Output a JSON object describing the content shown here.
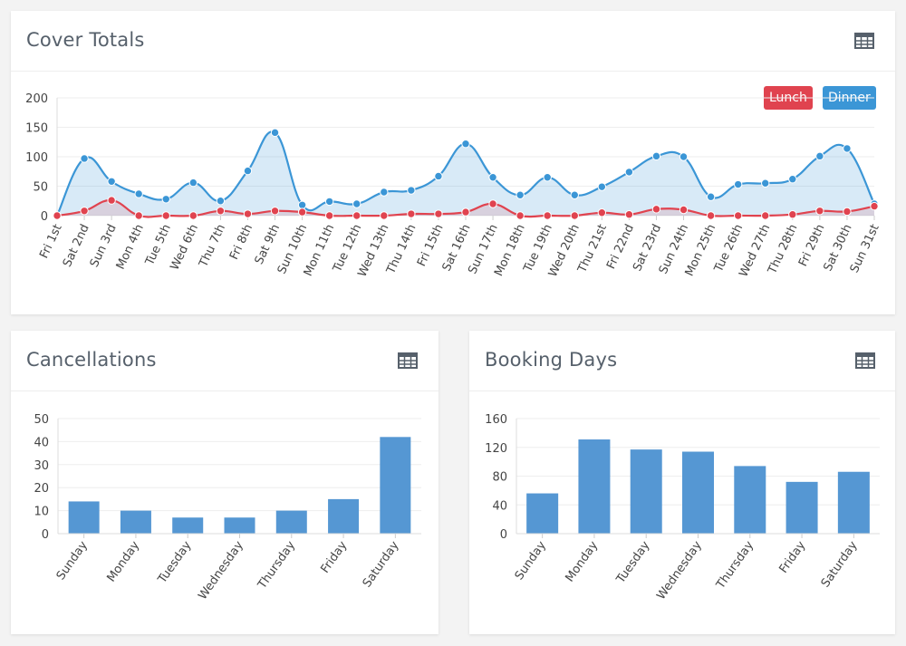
{
  "colors": {
    "lunch": "#e0434f",
    "dinner": "#3b96d6",
    "bar": "#5597d3",
    "grid": "#eeeeee",
    "axis_text": "#444444"
  },
  "cards": {
    "covers": {
      "title": "Cover Totals",
      "icon": "table-icon"
    },
    "cancellations": {
      "title": "Cancellations",
      "icon": "table-icon"
    },
    "booking": {
      "title": "Booking Days",
      "icon": "table-icon"
    }
  },
  "legend": {
    "lunch": "Lunch",
    "dinner": "Dinner"
  },
  "chart_data": [
    {
      "type": "area",
      "title": "Cover Totals",
      "categories": [
        "Fri 1st",
        "Sat 2nd",
        "Sun 3rd",
        "Mon 4th",
        "Tue 5th",
        "Wed 6th",
        "Thu 7th",
        "Fri 8th",
        "Sat 9th",
        "Sun 10th",
        "Mon 11th",
        "Tue 12th",
        "Wed 13th",
        "Thu 14th",
        "Fri 15th",
        "Sat 16th",
        "Sun 17th",
        "Mon 18th",
        "Tue 19th",
        "Wed 20th",
        "Thu 21st",
        "Fri 22nd",
        "Sat 23rd",
        "Sun 24th",
        "Mon 25th",
        "Tue 26th",
        "Wed 27th",
        "Thu 28th",
        "Fri 29th",
        "Sat 30th",
        "Sun 31st"
      ],
      "series": [
        {
          "name": "Lunch",
          "values": [
            0,
            8,
            26,
            0,
            0,
            0,
            8,
            3,
            8,
            6,
            0,
            0,
            0,
            3,
            3,
            6,
            20,
            0,
            0,
            0,
            5,
            2,
            11,
            10,
            0,
            0,
            0,
            2,
            8,
            7,
            16
          ]
        },
        {
          "name": "Dinner",
          "values": [
            0,
            97,
            58,
            37,
            28,
            56,
            25,
            76,
            141,
            18,
            24,
            20,
            40,
            43,
            67,
            122,
            65,
            35,
            65,
            35,
            49,
            74,
            101,
            100,
            32,
            53,
            55,
            62,
            101,
            114,
            20
          ]
        }
      ],
      "ylim": [
        0,
        200
      ],
      "yticks": [
        "0",
        "50",
        "100",
        "150",
        "200"
      ],
      "legend_position": "top-right",
      "grid": true
    },
    {
      "type": "bar",
      "title": "Cancellations",
      "categories": [
        "Sunday",
        "Monday",
        "Tuesday",
        "Wednesday",
        "Thursday",
        "Friday",
        "Saturday"
      ],
      "values": [
        14,
        10,
        7,
        7,
        10,
        15,
        42
      ],
      "ylim": [
        0,
        50
      ],
      "yticks": [
        "0",
        "10",
        "20",
        "30",
        "40",
        "50"
      ],
      "grid": true
    },
    {
      "type": "bar",
      "title": "Booking Days",
      "categories": [
        "Sunday",
        "Monday",
        "Tuesday",
        "Wednesday",
        "Thursday",
        "Friday",
        "Saturday"
      ],
      "values": [
        56,
        131,
        117,
        114,
        94,
        72,
        86
      ],
      "ylim": [
        0,
        160
      ],
      "yticks": [
        "0",
        "40",
        "80",
        "120",
        "160"
      ],
      "grid": true
    }
  ]
}
